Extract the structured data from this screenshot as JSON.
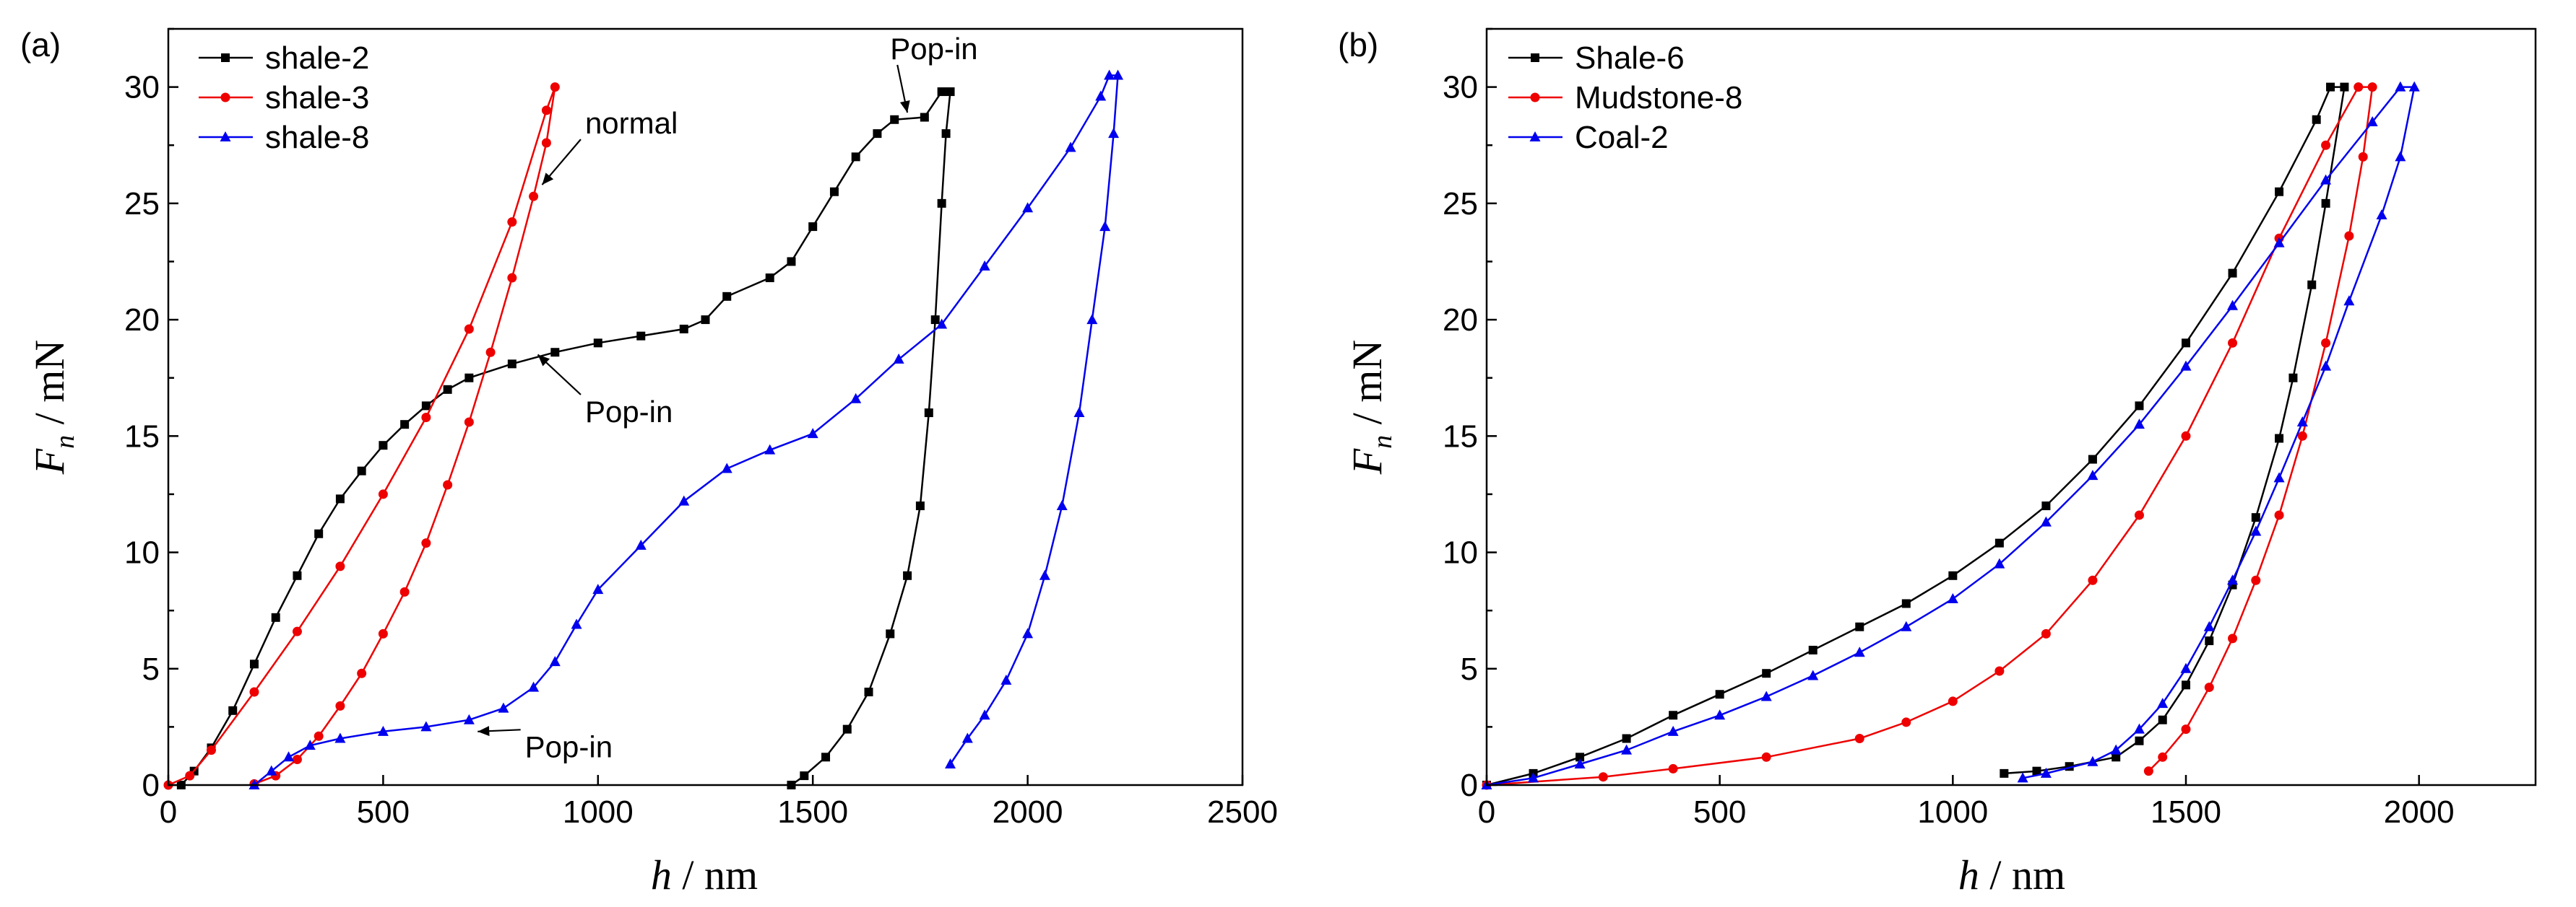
{
  "chart_data": [
    {
      "panel_label": "(a)",
      "type": "line",
      "xlabel": {
        "var": "h",
        "unit": "/ nm"
      },
      "ylabel": {
        "var": "F",
        "sub": "n",
        "unit": "/ mN"
      },
      "xlim": [
        0,
        2500
      ],
      "ylim": [
        0,
        32.5
      ],
      "xticks": [
        0,
        500,
        1000,
        1500,
        2000,
        2500
      ],
      "yticks": [
        0,
        5,
        10,
        15,
        20,
        25,
        30
      ],
      "legend_position": "top-left",
      "series": [
        {
          "name": "shale-2",
          "color": "#000000",
          "marker": "square",
          "points": [
            [
              30,
              0
            ],
            [
              60,
              0.6
            ],
            [
              100,
              1.6
            ],
            [
              150,
              3.2
            ],
            [
              200,
              5.2
            ],
            [
              250,
              7.2
            ],
            [
              300,
              9.0
            ],
            [
              350,
              10.8
            ],
            [
              400,
              12.3
            ],
            [
              450,
              13.5
            ],
            [
              500,
              14.6
            ],
            [
              550,
              15.5
            ],
            [
              600,
              16.3
            ],
            [
              650,
              17.0
            ],
            [
              700,
              17.5
            ],
            [
              800,
              18.1
            ],
            [
              900,
              18.6
            ],
            [
              1000,
              19.0
            ],
            [
              1100,
              19.3
            ],
            [
              1200,
              19.6
            ],
            [
              1250,
              20.0
            ],
            [
              1300,
              21.0
            ],
            [
              1400,
              21.8
            ],
            [
              1450,
              22.5
            ],
            [
              1500,
              24.0
            ],
            [
              1550,
              25.5
            ],
            [
              1600,
              27.0
            ],
            [
              1650,
              28.0
            ],
            [
              1690,
              28.6
            ],
            [
              1760,
              28.7
            ],
            [
              1800,
              29.8
            ],
            [
              1820,
              29.8
            ],
            [
              1810,
              28.0
            ],
            [
              1800,
              25.0
            ],
            [
              1785,
              20.0
            ],
            [
              1770,
              16.0
            ],
            [
              1750,
              12.0
            ],
            [
              1720,
              9.0
            ],
            [
              1680,
              6.5
            ],
            [
              1630,
              4.0
            ],
            [
              1580,
              2.4
            ],
            [
              1530,
              1.2
            ],
            [
              1480,
              0.4
            ],
            [
              1450,
              0
            ]
          ]
        },
        {
          "name": "shale-3",
          "color": "#ee0000",
          "marker": "circle",
          "points": [
            [
              0,
              0
            ],
            [
              50,
              0.4
            ],
            [
              100,
              1.5
            ],
            [
              200,
              4.0
            ],
            [
              300,
              6.6
            ],
            [
              400,
              9.4
            ],
            [
              500,
              12.5
            ],
            [
              600,
              15.8
            ],
            [
              700,
              19.6
            ],
            [
              800,
              24.2
            ],
            [
              880,
              29.0
            ],
            [
              900,
              30.0
            ],
            [
              880,
              27.6
            ],
            [
              850,
              25.3
            ],
            [
              800,
              21.8
            ],
            [
              750,
              18.6
            ],
            [
              700,
              15.6
            ],
            [
              650,
              12.9
            ],
            [
              600,
              10.4
            ],
            [
              550,
              8.3
            ],
            [
              500,
              6.5
            ],
            [
              450,
              4.8
            ],
            [
              400,
              3.4
            ],
            [
              350,
              2.1
            ],
            [
              300,
              1.1
            ],
            [
              250,
              0.4
            ],
            [
              200,
              0.05
            ]
          ]
        },
        {
          "name": "shale-8",
          "color": "#0000ee",
          "marker": "triangle",
          "points": [
            [
              200,
              0
            ],
            [
              240,
              0.6
            ],
            [
              280,
              1.2
            ],
            [
              330,
              1.7
            ],
            [
              400,
              2.0
            ],
            [
              500,
              2.3
            ],
            [
              600,
              2.5
            ],
            [
              700,
              2.8
            ],
            [
              780,
              3.3
            ],
            [
              850,
              4.2
            ],
            [
              900,
              5.3
            ],
            [
              950,
              6.9
            ],
            [
              1000,
              8.4
            ],
            [
              1100,
              10.3
            ],
            [
              1200,
              12.2
            ],
            [
              1300,
              13.6
            ],
            [
              1400,
              14.4
            ],
            [
              1500,
              15.1
            ],
            [
              1600,
              16.6
            ],
            [
              1700,
              18.3
            ],
            [
              1800,
              19.8
            ],
            [
              1900,
              22.3
            ],
            [
              2000,
              24.8
            ],
            [
              2100,
              27.4
            ],
            [
              2170,
              29.6
            ],
            [
              2190,
              30.5
            ],
            [
              2210,
              30.5
            ],
            [
              2200,
              28.0
            ],
            [
              2180,
              24.0
            ],
            [
              2150,
              20.0
            ],
            [
              2120,
              16.0
            ],
            [
              2080,
              12.0
            ],
            [
              2040,
              9.0
            ],
            [
              2000,
              6.5
            ],
            [
              1950,
              4.5
            ],
            [
              1900,
              3.0
            ],
            [
              1860,
              2.0
            ],
            [
              1820,
              0.9
            ]
          ]
        }
      ],
      "annotations": [
        {
          "text": "normal",
          "at": [
            970,
            28.0
          ],
          "arrow_to": [
            870,
            25.8
          ]
        },
        {
          "text": "Pop-in",
          "at": [
            1680,
            31.2
          ],
          "arrow_to": [
            1720,
            28.9
          ]
        },
        {
          "text": "Pop-in",
          "at": [
            970,
            15.6
          ],
          "arrow_to": [
            860,
            18.5
          ]
        },
        {
          "text": "Pop-in",
          "at": [
            830,
            1.2
          ],
          "arrow_to": [
            720,
            2.3
          ]
        }
      ]
    },
    {
      "panel_label": "(b)",
      "type": "line",
      "xlabel": {
        "var": "h",
        "unit": "/ nm"
      },
      "ylabel": {
        "var": "F",
        "sub": "n",
        "unit": "/ mN"
      },
      "xlim": [
        0,
        2250
      ],
      "ylim": [
        0,
        32.5
      ],
      "xticks": [
        0,
        500,
        1000,
        1500,
        2000
      ],
      "yticks": [
        0,
        5,
        10,
        15,
        20,
        25,
        30
      ],
      "legend_position": "top-left",
      "series": [
        {
          "name": "Shale-6",
          "color": "#000000",
          "marker": "square",
          "points": [
            [
              0,
              0
            ],
            [
              100,
              0.5
            ],
            [
              200,
              1.2
            ],
            [
              300,
              2.0
            ],
            [
              400,
              3.0
            ],
            [
              500,
              3.9
            ],
            [
              600,
              4.8
            ],
            [
              700,
              5.8
            ],
            [
              800,
              6.8
            ],
            [
              900,
              7.8
            ],
            [
              1000,
              9.0
            ],
            [
              1100,
              10.4
            ],
            [
              1200,
              12.0
            ],
            [
              1300,
              14.0
            ],
            [
              1400,
              16.3
            ],
            [
              1500,
              19.0
            ],
            [
              1600,
              22.0
            ],
            [
              1700,
              25.5
            ],
            [
              1780,
              28.6
            ],
            [
              1810,
              30.0
            ],
            [
              1840,
              30.0
            ],
            [
              1800,
              25.0
            ],
            [
              1770,
              21.5
            ],
            [
              1730,
              17.5
            ],
            [
              1700,
              14.9
            ],
            [
              1650,
              11.5
            ],
            [
              1600,
              8.6
            ],
            [
              1550,
              6.2
            ],
            [
              1500,
              4.3
            ],
            [
              1450,
              2.8
            ],
            [
              1400,
              1.9
            ],
            [
              1350,
              1.2
            ],
            [
              1250,
              0.8
            ],
            [
              1180,
              0.6
            ],
            [
              1110,
              0.5
            ]
          ]
        },
        {
          "name": "Mudstone-8",
          "color": "#ee0000",
          "marker": "circle",
          "points": [
            [
              0,
              0
            ],
            [
              250,
              0.35
            ],
            [
              400,
              0.7
            ],
            [
              600,
              1.2
            ],
            [
              800,
              2.0
            ],
            [
              900,
              2.7
            ],
            [
              1000,
              3.6
            ],
            [
              1100,
              4.9
            ],
            [
              1200,
              6.5
            ],
            [
              1300,
              8.8
            ],
            [
              1400,
              11.6
            ],
            [
              1500,
              15.0
            ],
            [
              1600,
              19.0
            ],
            [
              1700,
              23.5
            ],
            [
              1800,
              27.5
            ],
            [
              1870,
              30.0
            ],
            [
              1900,
              30.0
            ],
            [
              1880,
              27.0
            ],
            [
              1850,
              23.6
            ],
            [
              1800,
              19.0
            ],
            [
              1750,
              15.0
            ],
            [
              1700,
              11.6
            ],
            [
              1650,
              8.8
            ],
            [
              1600,
              6.3
            ],
            [
              1550,
              4.2
            ],
            [
              1500,
              2.4
            ],
            [
              1450,
              1.2
            ],
            [
              1420,
              0.6
            ]
          ]
        },
        {
          "name": "Coal-2",
          "color": "#0000ee",
          "marker": "triangle",
          "points": [
            [
              0,
              0
            ],
            [
              100,
              0.3
            ],
            [
              200,
              0.9
            ],
            [
              300,
              1.5
            ],
            [
              400,
              2.3
            ],
            [
              500,
              3.0
            ],
            [
              600,
              3.8
            ],
            [
              700,
              4.7
            ],
            [
              800,
              5.7
            ],
            [
              900,
              6.8
            ],
            [
              1000,
              8.0
            ],
            [
              1100,
              9.5
            ],
            [
              1200,
              11.3
            ],
            [
              1300,
              13.3
            ],
            [
              1400,
              15.5
            ],
            [
              1500,
              18.0
            ],
            [
              1600,
              20.6
            ],
            [
              1700,
              23.3
            ],
            [
              1800,
              26.0
            ],
            [
              1900,
              28.5
            ],
            [
              1960,
              30.0
            ],
            [
              1990,
              30.0
            ],
            [
              1960,
              27.0
            ],
            [
              1920,
              24.5
            ],
            [
              1850,
              20.8
            ],
            [
              1800,
              18.0
            ],
            [
              1750,
              15.6
            ],
            [
              1700,
              13.2
            ],
            [
              1650,
              10.9
            ],
            [
              1600,
              8.8
            ],
            [
              1550,
              6.8
            ],
            [
              1500,
              5.0
            ],
            [
              1450,
              3.5
            ],
            [
              1400,
              2.4
            ],
            [
              1350,
              1.5
            ],
            [
              1300,
              1.0
            ],
            [
              1200,
              0.5
            ],
            [
              1150,
              0.3
            ]
          ]
        }
      ]
    }
  ]
}
